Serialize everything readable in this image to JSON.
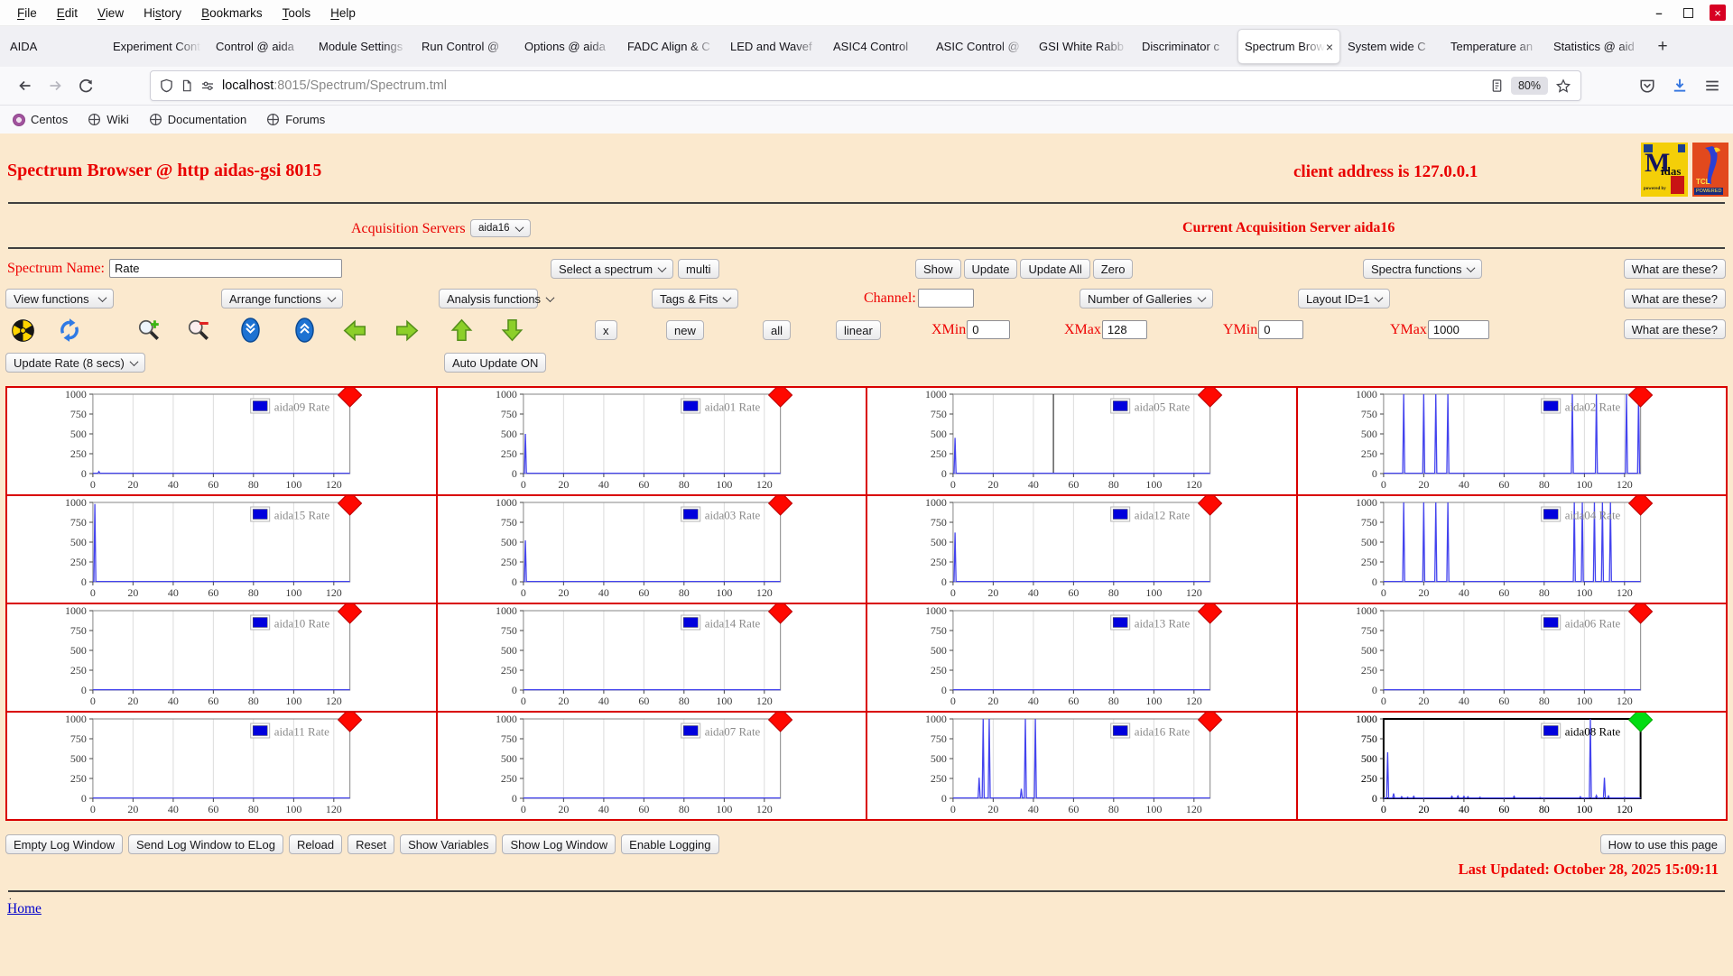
{
  "browser": {
    "menu": [
      "File",
      "Edit",
      "View",
      "History",
      "Bookmarks",
      "Tools",
      "Help"
    ],
    "tabs": [
      {
        "label": "AIDA",
        "active": false
      },
      {
        "label": "Experiment Cont",
        "active": false
      },
      {
        "label": "Control @ aida",
        "active": false
      },
      {
        "label": "Module Settings",
        "active": false
      },
      {
        "label": "Run Control @",
        "active": false
      },
      {
        "label": "Options @ aida",
        "active": false
      },
      {
        "label": "FADC Align & C",
        "active": false
      },
      {
        "label": "LED and Wavef",
        "active": false
      },
      {
        "label": "ASIC4 Control",
        "active": false
      },
      {
        "label": "ASIC Control @",
        "active": false
      },
      {
        "label": "GSI White Rabb",
        "active": false
      },
      {
        "label": "Discriminator c",
        "active": false
      },
      {
        "label": "Spectrum Brow",
        "active": true
      },
      {
        "label": "System wide C",
        "active": false
      },
      {
        "label": "Temperature an",
        "active": false
      },
      {
        "label": "Statistics @ aid",
        "active": false
      }
    ],
    "new_tab_button": "+",
    "url_host": "localhost",
    "url_path": ":8015/Spectrum/Spectrum.tml",
    "zoom_badge": "80%",
    "bookmarks": [
      "Centos",
      "Wiki",
      "Documentation",
      "Forums"
    ],
    "window_controls": {
      "minimize": "–",
      "maximize": "",
      "close": "×"
    },
    "active_tab_close": "×"
  },
  "page": {
    "title": "Spectrum Browser @ http aidas-gsi 8015",
    "client_address": "client address is 127.0.0.1",
    "acq_servers_label": "Acquisition Servers",
    "acq_server_selected": "aida16",
    "current_server": "Current Acquisition Server aida16",
    "spectrum_name_label": "Spectrum Name:",
    "spectrum_name_value": "Rate",
    "select_spectrum": "Select a spectrum",
    "multi": "multi",
    "show": "Show",
    "update": "Update",
    "update_all": "Update All",
    "zero": "Zero",
    "spectra_functions": "Spectra functions",
    "what_are_these": "What are these?",
    "view_functions": "View functions",
    "arrange_functions": "Arrange functions",
    "analysis_functions": "Analysis functions",
    "tags_fits": "Tags & Fits",
    "channel_label": "Channel:",
    "channel_value": "",
    "number_of_galleries": "Number of Galleries",
    "layout_id": "Layout ID=1",
    "tool_icons": [
      "radiation-icon",
      "refresh-icon",
      "zoom-in-icon",
      "zoom-out-icon",
      "shrink-y-icon",
      "expand-y-icon",
      "arrow-left-icon",
      "arrow-right-icon",
      "arrow-up-icon",
      "arrow-down-icon"
    ],
    "toolbar_buttons": [
      "x",
      "new",
      "all",
      "linear"
    ],
    "ranges": [
      {
        "label": "XMin",
        "value": "0"
      },
      {
        "label": "XMax",
        "value": "128"
      },
      {
        "label": "YMin",
        "value": "0"
      },
      {
        "label": "YMax",
        "value": "1000"
      }
    ],
    "update_rate": "Update Rate (8 secs)",
    "auto_update": "Auto Update ON",
    "footer_buttons": [
      "Empty Log Window",
      "Send Log Window to ELog",
      "Reload",
      "Reset",
      "Show Variables",
      "Show Log Window",
      "Enable Logging"
    ],
    "how_to_use": "How to use this page",
    "last_updated": "Last Updated: October 28, 2025 15:09:11",
    "dot": ".",
    "home": "Home"
  },
  "colors": {
    "page_background": "#fbe9ce",
    "accent_red_text": "#ee0000",
    "grid_border_red": "#d90000",
    "series_blue": "#4343ee",
    "legend_swatch_blue": "#0000dd",
    "marker_red": "#ff0800",
    "marker_green": "#00dd12"
  },
  "chart_data": {
    "type": "line",
    "title": "",
    "xlabel": "",
    "ylabel": "",
    "xlim": [
      0,
      128
    ],
    "ylim": [
      0,
      1000
    ],
    "xticks": [
      0,
      20,
      40,
      60,
      80,
      100,
      120
    ],
    "yticks": [
      0,
      250,
      500,
      750,
      1000
    ],
    "grid": "vertical",
    "legend_position": "top-right",
    "series_color": "#4343ee",
    "baseline": 5,
    "charts": [
      {
        "name": "aida09 Rate",
        "marker": "red",
        "selected": false,
        "spikes": [
          [
            3,
            25
          ]
        ]
      },
      {
        "name": "aida01 Rate",
        "marker": "red",
        "selected": false,
        "spikes": [
          [
            1,
            500
          ]
        ]
      },
      {
        "name": "aida05 Rate",
        "marker": "red",
        "selected": false,
        "cursor_x": 50,
        "spikes": [
          [
            1,
            450
          ]
        ]
      },
      {
        "name": "aida02 Rate",
        "marker": "red",
        "selected": false,
        "spikes": [
          [
            10,
            1000
          ],
          [
            20,
            1000
          ],
          [
            26,
            1000
          ],
          [
            32,
            1000
          ],
          [
            94,
            1000
          ],
          [
            106,
            1000
          ],
          [
            121,
            1000
          ],
          [
            127,
            1000
          ]
        ]
      },
      {
        "name": "aida15 Rate",
        "marker": "red",
        "selected": false,
        "spikes": [
          [
            1,
            980
          ]
        ]
      },
      {
        "name": "aida03 Rate",
        "marker": "red",
        "selected": false,
        "spikes": [
          [
            1,
            520
          ]
        ]
      },
      {
        "name": "aida12 Rate",
        "marker": "red",
        "selected": false,
        "spikes": [
          [
            1,
            620
          ]
        ]
      },
      {
        "name": "aida04 Rate",
        "marker": "red",
        "selected": false,
        "spikes": [
          [
            10,
            1000
          ],
          [
            20,
            1000
          ],
          [
            26,
            1000
          ],
          [
            32,
            1000
          ],
          [
            95,
            1000
          ],
          [
            99,
            1000
          ],
          [
            105,
            1000
          ],
          [
            109,
            1000
          ],
          [
            113,
            1000
          ]
        ]
      },
      {
        "name": "aida10 Rate",
        "marker": "red",
        "selected": false,
        "spikes": []
      },
      {
        "name": "aida14 Rate",
        "marker": "red",
        "selected": false,
        "spikes": []
      },
      {
        "name": "aida13 Rate",
        "marker": "red",
        "selected": false,
        "spikes": []
      },
      {
        "name": "aida06 Rate",
        "marker": "red",
        "selected": false,
        "spikes": []
      },
      {
        "name": "aida11 Rate",
        "marker": "red",
        "selected": false,
        "spikes": []
      },
      {
        "name": "aida07 Rate",
        "marker": "red",
        "selected": false,
        "spikes": []
      },
      {
        "name": "aida16 Rate",
        "marker": "red",
        "selected": false,
        "spikes": [
          [
            13,
            260
          ],
          [
            15,
            1000
          ],
          [
            18,
            1000
          ],
          [
            34,
            120
          ],
          [
            36,
            1000
          ],
          [
            41,
            1000
          ]
        ]
      },
      {
        "name": "aida08 Rate",
        "marker": "green",
        "selected": true,
        "spikes": [
          [
            2,
            580
          ],
          [
            5,
            60
          ],
          [
            9,
            20
          ],
          [
            12,
            15
          ],
          [
            15,
            25
          ],
          [
            34,
            25
          ],
          [
            37,
            30
          ],
          [
            40,
            25
          ],
          [
            42,
            20
          ],
          [
            48,
            15
          ],
          [
            65,
            25
          ],
          [
            78,
            10
          ],
          [
            98,
            20
          ],
          [
            103,
            1000
          ],
          [
            106,
            35
          ],
          [
            110,
            260
          ],
          [
            112,
            30
          ],
          [
            120,
            10
          ]
        ]
      }
    ]
  }
}
